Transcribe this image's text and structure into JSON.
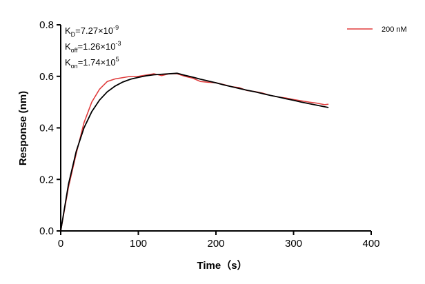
{
  "chart_data": {
    "type": "line",
    "xlabel": "Time（s）",
    "ylabel": "Response (nm)",
    "xlim": [
      0,
      400
    ],
    "ylim": [
      0,
      0.8
    ],
    "xticks": [
      0,
      100,
      200,
      300,
      400
    ],
    "yticks": [
      {
        "value": 0,
        "label": "0.0"
      },
      0.2,
      0.4,
      0.6,
      0.8
    ],
    "legend": "top-right",
    "annotations": [
      {
        "symbol": "K",
        "subscript": "D",
        "text": "=7.27×10",
        "exponent": "-9"
      },
      {
        "symbol": "K",
        "subscript": "off",
        "text": "=1.26×10",
        "exponent": "-3"
      },
      {
        "symbol": "K",
        "subscript": "on",
        "text": "=1.74×10",
        "exponent": "5"
      }
    ],
    "x": [
      0,
      10,
      20,
      30,
      40,
      50,
      60,
      70,
      80,
      90,
      100,
      110,
      120,
      130,
      140,
      150,
      160,
      170,
      180,
      190,
      200,
      210,
      220,
      230,
      240,
      250,
      260,
      270,
      280,
      290,
      300,
      310,
      320,
      330,
      340,
      345
    ],
    "series": [
      {
        "name": "200 nM",
        "color": "#e03c3c",
        "values": [
          0,
          0.17,
          0.3,
          0.42,
          0.5,
          0.55,
          0.58,
          0.59,
          0.595,
          0.6,
          0.6,
          0.605,
          0.61,
          0.603,
          0.61,
          0.61,
          0.6,
          0.593,
          0.58,
          0.577,
          0.575,
          0.568,
          0.56,
          0.556,
          0.545,
          0.541,
          0.535,
          0.526,
          0.52,
          0.516,
          0.51,
          0.505,
          0.5,
          0.496,
          0.49,
          0.492
        ]
      },
      {
        "color": "#000000",
        "values": [
          0,
          0.181,
          0.309,
          0.4,
          0.463,
          0.508,
          0.54,
          0.562,
          0.578,
          0.589,
          0.596,
          0.602,
          0.606,
          0.608,
          0.61,
          0.612,
          0.604,
          0.597,
          0.589,
          0.582,
          0.575,
          0.567,
          0.56,
          0.553,
          0.546,
          0.54,
          0.533,
          0.526,
          0.52,
          0.513,
          0.507,
          0.5,
          0.494,
          0.488,
          0.482,
          0.479
        ]
      }
    ]
  }
}
